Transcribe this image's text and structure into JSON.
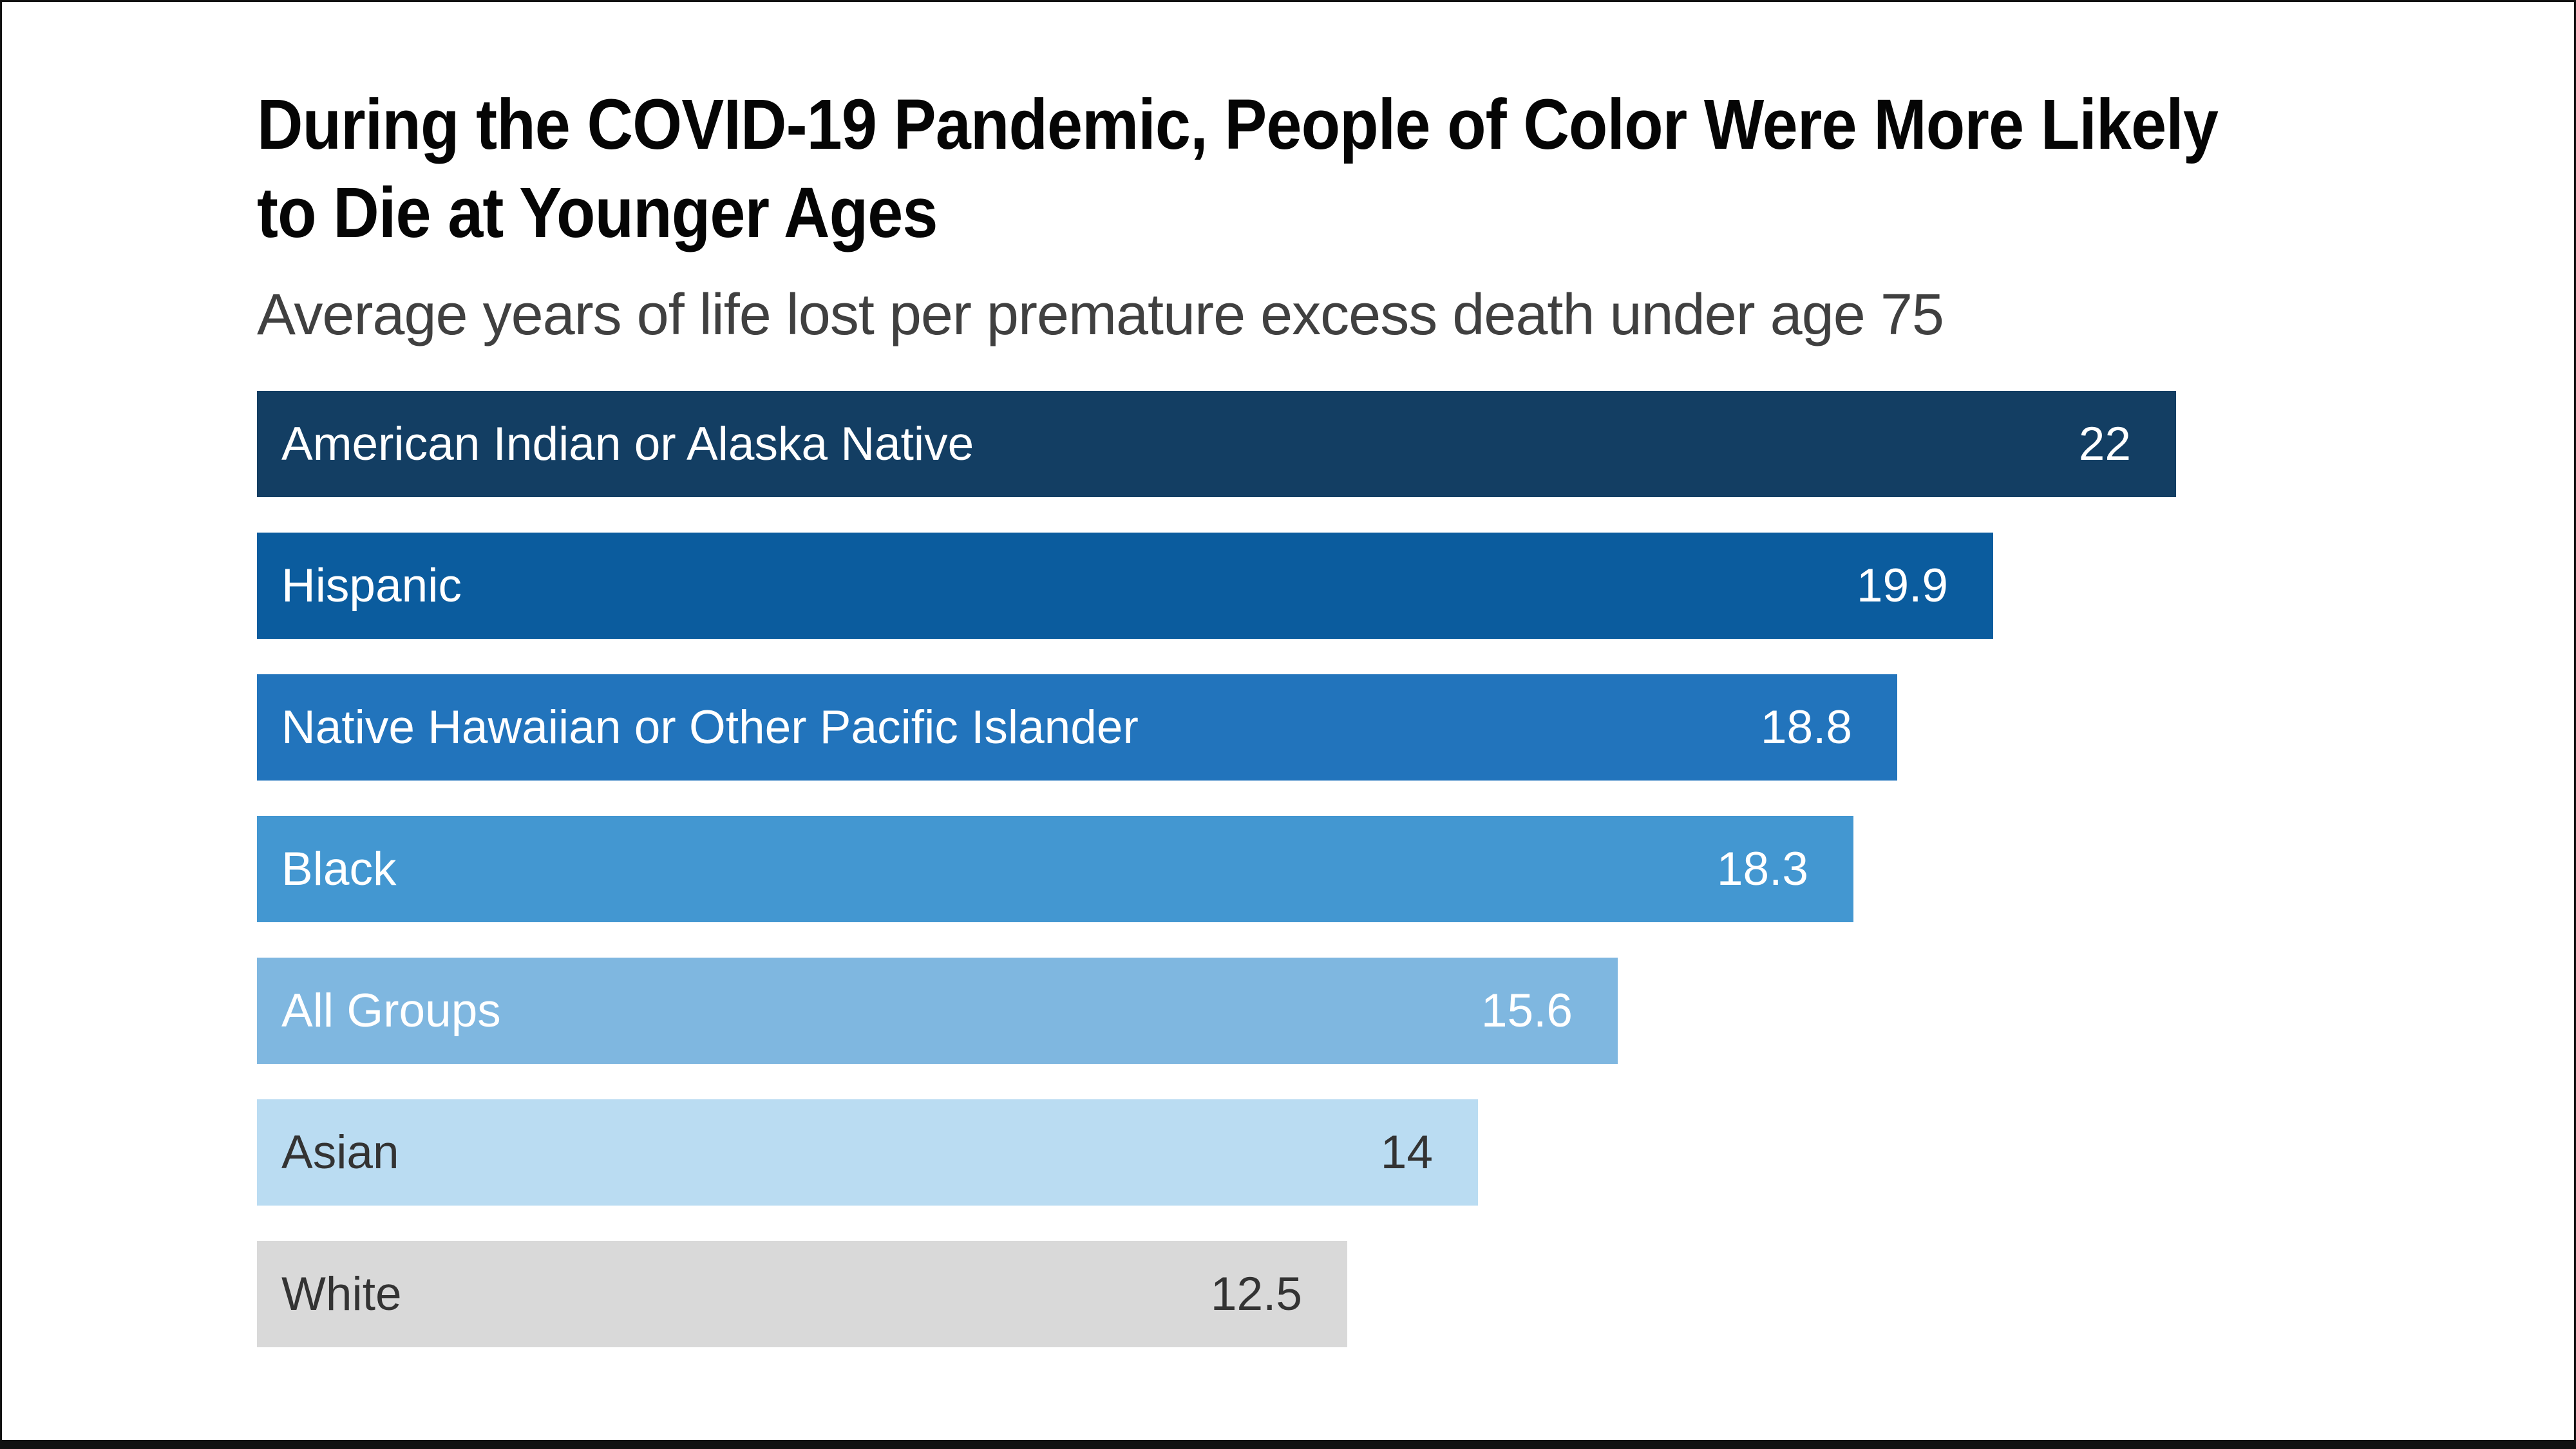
{
  "header": {
    "title_line1": "During the COVID-19 Pandemic, People of Color Were More Likely",
    "title_line2": "to Die at Younger Ages",
    "subtitle": "Average years of life lost per premature excess death under age 75"
  },
  "chart_data": {
    "type": "bar",
    "orientation": "horizontal",
    "title": "During the COVID-19 Pandemic, People of Color Were More Likely to Die at Younger Ages",
    "subtitle": "Average years of life lost per premature excess death under age 75",
    "xlabel": "",
    "ylabel": "",
    "xlim": [
      0,
      22
    ],
    "grid": false,
    "legend": false,
    "categories": [
      "American Indian or Alaska Native",
      "Hispanic",
      "Native Hawaiian or Other Pacific Islander",
      "Black",
      "All Groups",
      "Asian",
      "White"
    ],
    "values": [
      22,
      19.9,
      18.8,
      18.3,
      15.6,
      14,
      12.5
    ],
    "rows": [
      {
        "label": "American Indian or Alaska Native",
        "value": 22,
        "value_label": "22",
        "bar_color": "#133E63",
        "text_color": "#FFFFFF"
      },
      {
        "label": "Hispanic",
        "value": 19.9,
        "value_label": "19.9",
        "bar_color": "#0B5C9E",
        "text_color": "#FFFFFF"
      },
      {
        "label": "Native Hawaiian or Other Pacific Islander",
        "value": 18.8,
        "value_label": "18.8",
        "bar_color": "#2274BC",
        "text_color": "#FFFFFF"
      },
      {
        "label": "Black",
        "value": 18.3,
        "value_label": "18.3",
        "bar_color": "#4397D1",
        "text_color": "#FFFFFF"
      },
      {
        "label": "All Groups",
        "value": 15.6,
        "value_label": "15.6",
        "bar_color": "#7FB7E0",
        "text_color": "#FFFFFF"
      },
      {
        "label": "Asian",
        "value": 14,
        "value_label": "14",
        "bar_color": "#BADCF2",
        "text_color": "#333333"
      },
      {
        "label": "White",
        "value": 12.5,
        "value_label": "12.5",
        "bar_color": "#D9D9D9",
        "text_color": "#333333"
      }
    ]
  },
  "frame": {
    "border_color": "#111111",
    "background_color": "#FFFFFF"
  }
}
